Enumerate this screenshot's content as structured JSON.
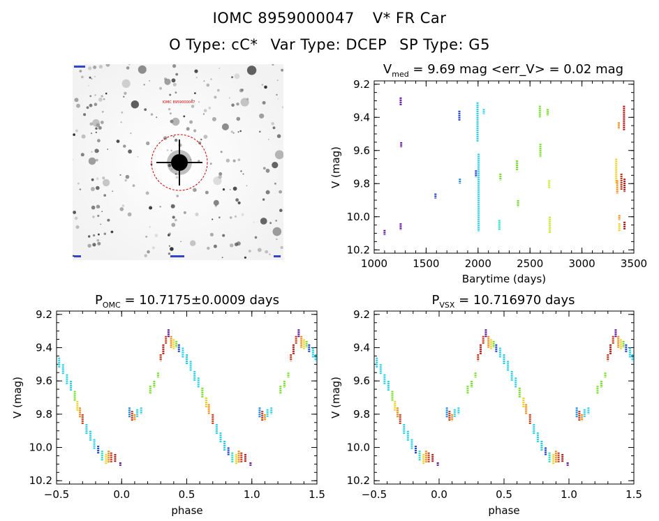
{
  "header": {
    "object_name": "IOMC 8959000047",
    "star_name": "V* FR Car",
    "o_type": "O Type: cC*",
    "var_type": "Var Type: DCEP",
    "sp_type": "SP Type: G5"
  },
  "thumbnail": {
    "tag": "IOMC 8959000047",
    "circle_color": "#cc0000"
  },
  "colors": [
    "#5a0aa0",
    "#1a3ad0",
    "#1888e8",
    "#20d0e8",
    "#20e0c0",
    "#70e020",
    "#c8e820",
    "#f0d020",
    "#f08a10",
    "#d03010",
    "#b01010"
  ],
  "chart_data": [
    {
      "id": "timeseries",
      "type": "scatter",
      "title_main": "V",
      "title_sub": "med",
      "title_rest": " = 9.69 mag <err_V> = 0.02 mag",
      "xlabel": "Barytime (days)",
      "ylabel": "V (mag)",
      "xlim": [
        1000,
        3500
      ],
      "ylim": [
        10.22,
        9.18
      ],
      "xticks": [
        1000,
        1500,
        2000,
        2500,
        3000,
        3500
      ],
      "yticks": [
        9.2,
        9.4,
        9.6,
        9.8,
        10.0,
        10.2
      ],
      "ytick_labels": [
        "9.2",
        "9.4",
        "9.6",
        "9.8",
        "10.0",
        "10.2"
      ],
      "segments": [
        {
          "x": 1100,
          "y1": 10.08,
          "y2": 10.11,
          "c": 0
        },
        {
          "x": 1255,
          "y1": 9.28,
          "y2": 9.33,
          "c": 0
        },
        {
          "x": 1260,
          "y1": 9.55,
          "y2": 9.58,
          "c": 0
        },
        {
          "x": 1255,
          "y1": 10.04,
          "y2": 10.08,
          "c": 0
        },
        {
          "x": 1590,
          "y1": 9.86,
          "y2": 9.89,
          "c": 1
        },
        {
          "x": 1820,
          "y1": 9.36,
          "y2": 9.42,
          "c": 1
        },
        {
          "x": 1825,
          "y1": 9.77,
          "y2": 9.8,
          "c": 2
        },
        {
          "x": 1980,
          "y1": 9.72,
          "y2": 9.76,
          "c": 1
        },
        {
          "x": 1995,
          "y1": 9.31,
          "y2": 9.55,
          "c": 3
        },
        {
          "x": 2005,
          "y1": 9.62,
          "y2": 10.09,
          "c": 3
        },
        {
          "x": 2055,
          "y1": 9.35,
          "y2": 9.38,
          "c": 3
        },
        {
          "x": 2205,
          "y1": 10.02,
          "y2": 10.08,
          "c": 4
        },
        {
          "x": 2215,
          "y1": 9.74,
          "y2": 9.78,
          "c": 5
        },
        {
          "x": 2375,
          "y1": 9.66,
          "y2": 9.72,
          "c": 5
        },
        {
          "x": 2385,
          "y1": 9.9,
          "y2": 9.94,
          "c": 5
        },
        {
          "x": 2595,
          "y1": 9.33,
          "y2": 9.4,
          "c": 5
        },
        {
          "x": 2600,
          "y1": 9.56,
          "y2": 9.64,
          "c": 5
        },
        {
          "x": 2670,
          "y1": 9.35,
          "y2": 9.39,
          "c": 5
        },
        {
          "x": 2685,
          "y1": 9.78,
          "y2": 9.83,
          "c": 6
        },
        {
          "x": 2690,
          "y1": 10.0,
          "y2": 10.1,
          "c": 6
        },
        {
          "x": 3330,
          "y1": 9.65,
          "y2": 9.8,
          "c": 7
        },
        {
          "x": 3340,
          "y1": 9.78,
          "y2": 9.86,
          "c": 8
        },
        {
          "x": 3355,
          "y1": 9.43,
          "y2": 9.47,
          "c": 8
        },
        {
          "x": 3360,
          "y1": 9.99,
          "y2": 10.02,
          "c": 8
        },
        {
          "x": 3360,
          "y1": 10.04,
          "y2": 10.09,
          "c": 7
        },
        {
          "x": 3380,
          "y1": 9.74,
          "y2": 9.84,
          "c": 9
        },
        {
          "x": 3405,
          "y1": 9.33,
          "y2": 9.48,
          "c": 10
        },
        {
          "x": 3410,
          "y1": 9.77,
          "y2": 9.85,
          "c": 10
        },
        {
          "x": 3410,
          "y1": 10.03,
          "y2": 10.08,
          "c": 10
        }
      ]
    },
    {
      "id": "phase_omc",
      "type": "scatter",
      "title_main": "P",
      "title_sub": "OMC",
      "title_rest": " = 10.7175±0.0009 days",
      "xlabel": "phase",
      "ylabel": "V (mag)",
      "xlim": [
        -0.5,
        1.5
      ],
      "ylim": [
        10.22,
        9.18
      ],
      "xticks": [
        -0.5,
        0.0,
        0.5,
        1.0,
        1.5
      ],
      "xtick_labels": [
        "−0.5",
        "0.0",
        "0.5",
        "1.0",
        "1.5"
      ],
      "yticks": [
        9.2,
        9.4,
        9.6,
        9.8,
        10.0,
        10.2
      ],
      "ytick_labels": [
        "9.2",
        "9.4",
        "9.6",
        "9.8",
        "10.0",
        "10.2"
      ],
      "segments": [
        {
          "x": -0.48,
          "y1": 9.46,
          "y2": 9.52,
          "c": 3
        },
        {
          "x": -0.45,
          "y1": 9.5,
          "y2": 9.56,
          "c": 3
        },
        {
          "x": -0.42,
          "y1": 9.56,
          "y2": 9.62,
          "c": 3
        },
        {
          "x": -0.39,
          "y1": 9.6,
          "y2": 9.66,
          "c": 3
        },
        {
          "x": -0.36,
          "y1": 9.66,
          "y2": 9.72,
          "c": 5
        },
        {
          "x": -0.34,
          "y1": 9.72,
          "y2": 9.78,
          "c": 7
        },
        {
          "x": -0.32,
          "y1": 9.76,
          "y2": 9.82,
          "c": 8
        },
        {
          "x": -0.3,
          "y1": 9.8,
          "y2": 9.86,
          "c": 9
        },
        {
          "x": -0.27,
          "y1": 9.86,
          "y2": 9.92,
          "c": 3
        },
        {
          "x": -0.24,
          "y1": 9.9,
          "y2": 9.96,
          "c": 3
        },
        {
          "x": -0.21,
          "y1": 9.95,
          "y2": 10.01,
          "c": 3
        },
        {
          "x": -0.18,
          "y1": 9.99,
          "y2": 10.04,
          "c": 1
        },
        {
          "x": -0.15,
          "y1": 10.02,
          "y2": 10.08,
          "c": 4
        },
        {
          "x": -0.12,
          "y1": 10.04,
          "y2": 10.1,
          "c": 7
        },
        {
          "x": -0.1,
          "y1": 10.02,
          "y2": 10.09,
          "c": 8
        },
        {
          "x": -0.08,
          "y1": 10.03,
          "y2": 10.09,
          "c": 9
        },
        {
          "x": -0.05,
          "y1": 10.04,
          "y2": 10.09,
          "c": 10
        },
        {
          "x": -0.01,
          "y1": 10.09,
          "y2": 10.11,
          "c": 0
        },
        {
          "x": 0.06,
          "y1": 9.76,
          "y2": 9.82,
          "c": 2
        },
        {
          "x": 0.08,
          "y1": 9.78,
          "y2": 9.84,
          "c": 9
        },
        {
          "x": 0.1,
          "y1": 9.8,
          "y2": 9.84,
          "c": 8
        },
        {
          "x": 0.12,
          "y1": 9.77,
          "y2": 9.82,
          "c": 3
        },
        {
          "x": 0.15,
          "y1": 9.76,
          "y2": 9.8,
          "c": 3
        },
        {
          "x": 0.22,
          "y1": 9.63,
          "y2": 9.68,
          "c": 5
        },
        {
          "x": 0.25,
          "y1": 9.6,
          "y2": 9.64,
          "c": 5
        },
        {
          "x": 0.28,
          "y1": 9.55,
          "y2": 9.58,
          "c": 5
        },
        {
          "x": 0.3,
          "y1": 9.44,
          "y2": 9.48,
          "c": 9
        },
        {
          "x": 0.32,
          "y1": 9.38,
          "y2": 9.44,
          "c": 10
        },
        {
          "x": 0.34,
          "y1": 9.33,
          "y2": 9.38,
          "c": 9
        },
        {
          "x": 0.36,
          "y1": 9.29,
          "y2": 9.34,
          "c": 0
        },
        {
          "x": 0.38,
          "y1": 9.33,
          "y2": 9.4,
          "c": 8
        },
        {
          "x": 0.4,
          "y1": 9.35,
          "y2": 9.41,
          "c": 7
        },
        {
          "x": 0.42,
          "y1": 9.36,
          "y2": 9.4,
          "c": 5
        },
        {
          "x": 0.44,
          "y1": 9.38,
          "y2": 9.43,
          "c": 1
        },
        {
          "x": 0.47,
          "y1": 9.4,
          "y2": 9.46,
          "c": 3
        },
        {
          "x": 0.5,
          "y1": 9.44,
          "y2": 9.5,
          "c": 3
        },
        {
          "x": 0.53,
          "y1": 9.48,
          "y2": 9.54,
          "c": 3
        },
        {
          "x": 0.56,
          "y1": 9.54,
          "y2": 9.6,
          "c": 3
        },
        {
          "x": 0.59,
          "y1": 9.58,
          "y2": 9.64,
          "c": 3
        },
        {
          "x": 0.62,
          "y1": 9.64,
          "y2": 9.7,
          "c": 5
        },
        {
          "x": 0.65,
          "y1": 9.7,
          "y2": 9.76,
          "c": 7
        },
        {
          "x": 0.67,
          "y1": 9.74,
          "y2": 9.8,
          "c": 8
        },
        {
          "x": 0.7,
          "y1": 9.8,
          "y2": 9.86,
          "c": 9
        },
        {
          "x": 0.73,
          "y1": 9.86,
          "y2": 9.92,
          "c": 3
        },
        {
          "x": 0.76,
          "y1": 9.91,
          "y2": 9.97,
          "c": 3
        },
        {
          "x": 0.79,
          "y1": 9.96,
          "y2": 10.02,
          "c": 3
        },
        {
          "x": 0.82,
          "y1": 10.0,
          "y2": 10.05,
          "c": 1
        },
        {
          "x": 0.85,
          "y1": 10.03,
          "y2": 10.09,
          "c": 4
        },
        {
          "x": 0.88,
          "y1": 10.04,
          "y2": 10.1,
          "c": 7
        },
        {
          "x": 0.9,
          "y1": 10.02,
          "y2": 10.09,
          "c": 8
        },
        {
          "x": 0.92,
          "y1": 10.03,
          "y2": 10.09,
          "c": 9
        },
        {
          "x": 0.95,
          "y1": 10.04,
          "y2": 10.09,
          "c": 10
        },
        {
          "x": 0.99,
          "y1": 10.09,
          "y2": 10.11,
          "c": 0
        },
        {
          "x": 1.06,
          "y1": 9.76,
          "y2": 9.82,
          "c": 2
        },
        {
          "x": 1.08,
          "y1": 9.78,
          "y2": 9.84,
          "c": 9
        },
        {
          "x": 1.1,
          "y1": 9.8,
          "y2": 9.84,
          "c": 8
        },
        {
          "x": 1.12,
          "y1": 9.77,
          "y2": 9.82,
          "c": 3
        },
        {
          "x": 1.15,
          "y1": 9.76,
          "y2": 9.8,
          "c": 3
        },
        {
          "x": 1.22,
          "y1": 9.63,
          "y2": 9.68,
          "c": 5
        },
        {
          "x": 1.25,
          "y1": 9.6,
          "y2": 9.64,
          "c": 5
        },
        {
          "x": 1.28,
          "y1": 9.55,
          "y2": 9.58,
          "c": 5
        },
        {
          "x": 1.3,
          "y1": 9.44,
          "y2": 9.48,
          "c": 9
        },
        {
          "x": 1.32,
          "y1": 9.38,
          "y2": 9.44,
          "c": 10
        },
        {
          "x": 1.34,
          "y1": 9.33,
          "y2": 9.38,
          "c": 9
        },
        {
          "x": 1.36,
          "y1": 9.29,
          "y2": 9.34,
          "c": 0
        },
        {
          "x": 1.38,
          "y1": 9.33,
          "y2": 9.4,
          "c": 8
        },
        {
          "x": 1.4,
          "y1": 9.35,
          "y2": 9.41,
          "c": 7
        },
        {
          "x": 1.42,
          "y1": 9.36,
          "y2": 9.4,
          "c": 5
        },
        {
          "x": 1.44,
          "y1": 9.38,
          "y2": 9.43,
          "c": 1
        },
        {
          "x": 1.47,
          "y1": 9.4,
          "y2": 9.46,
          "c": 3
        },
        {
          "x": 1.49,
          "y1": 9.44,
          "y2": 9.48,
          "c": 3
        }
      ]
    },
    {
      "id": "phase_vsx",
      "type": "scatter",
      "title_main": "P",
      "title_sub": "VSX",
      "title_rest": " = 10.716970 days",
      "xlabel": "phase",
      "ylabel": "V (mag)",
      "xlim": [
        -0.5,
        1.5
      ],
      "ylim": [
        10.22,
        9.18
      ],
      "xticks": [
        -0.5,
        0.0,
        0.5,
        1.0,
        1.5
      ],
      "xtick_labels": [
        "−0.5",
        "0.0",
        "0.5",
        "1.0",
        "1.5"
      ],
      "yticks": [
        9.2,
        9.4,
        9.6,
        9.8,
        10.0,
        10.2
      ],
      "ytick_labels": [
        "9.2",
        "9.4",
        "9.6",
        "9.8",
        "10.0",
        "10.2"
      ],
      "same_as": "phase_omc"
    }
  ]
}
